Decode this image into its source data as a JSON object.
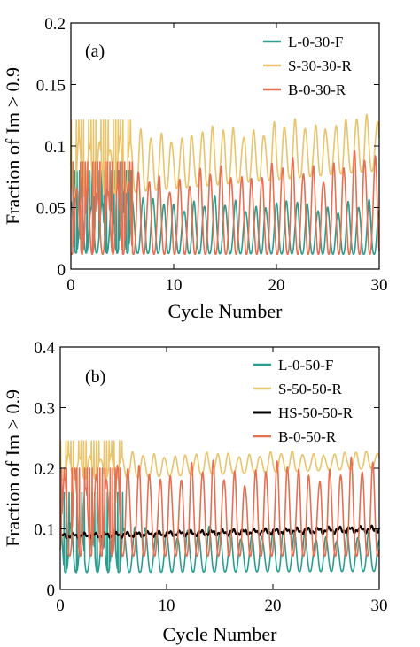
{
  "chart_data": [
    {
      "type": "line",
      "panel_label": "(a)",
      "xlabel": "Cycle Number",
      "ylabel": "Fraction of Im > 0.9",
      "xlim": [
        0,
        30
      ],
      "ylim": [
        0,
        0.2
      ],
      "xticks": [
        0,
        10,
        20,
        30
      ],
      "yticks": [
        0,
        0.05,
        0.1,
        0.15,
        0.2
      ],
      "xtick_labels": [
        "0",
        "10",
        "20",
        "30"
      ],
      "ytick_labels": [
        "0",
        "0.05",
        "0.1",
        "0.15",
        "0.2"
      ],
      "grid": false,
      "legend_position": "top-right",
      "series": [
        {
          "name": "L-0-30-F",
          "color": "#2a9d8f",
          "style": "oscillating",
          "cycles": 30,
          "low_start": 0.013,
          "low_end": 0.012,
          "high_start": 0.055,
          "high_end": 0.05,
          "peak_value": 0.08
        },
        {
          "name": "S-30-30-R",
          "color": "#e9c46a",
          "style": "oscillating",
          "cycles": 30,
          "low_start": 0.058,
          "low_end": 0.08,
          "high_start": 0.102,
          "high_end": 0.121,
          "peak_value": 0.121
        },
        {
          "name": "B-0-30-R",
          "color": "#e76f51",
          "style": "oscillating",
          "cycles": 30,
          "low_start": 0.012,
          "low_end": 0.012,
          "high_start": 0.065,
          "high_end": 0.087,
          "peak_value": 0.087
        }
      ]
    },
    {
      "type": "line",
      "panel_label": "(b)",
      "xlabel": "Cycle Number",
      "ylabel": "Fraction of Im > 0.9",
      "xlim": [
        0,
        30
      ],
      "ylim": [
        0,
        0.4
      ],
      "xticks": [
        0,
        10,
        20,
        30
      ],
      "yticks": [
        0,
        0.1,
        0.2,
        0.3,
        0.4
      ],
      "xtick_labels": [
        "0",
        "10",
        "20",
        "30"
      ],
      "ytick_labels": [
        "0",
        "0.1",
        "0.2",
        "0.3",
        "0.4"
      ],
      "grid": false,
      "legend_position": "top-right",
      "series": [
        {
          "name": "L-0-50-F",
          "color": "#2a9d8f",
          "style": "oscillating",
          "cycles": 30,
          "low_start": 0.028,
          "low_end": 0.03,
          "high_start": 0.1,
          "high_end": 0.085,
          "peak_value": 0.16
        },
        {
          "name": "S-50-50-R",
          "color": "#e9c46a",
          "style": "oscillating",
          "cycles": 30,
          "low_start": 0.18,
          "low_end": 0.2,
          "high_start": 0.22,
          "high_end": 0.225,
          "peak_value": 0.245
        },
        {
          "name": "HS-50-50-R",
          "color": "#000000",
          "style": "noisy",
          "cycles": 30,
          "low_start": 0.083,
          "low_end": 0.093,
          "high_start": 0.093,
          "high_end": 0.106,
          "peak_value": 0.11
        },
        {
          "name": "B-0-50-R",
          "color": "#e76f51",
          "style": "oscillating",
          "cycles": 30,
          "low_start": 0.055,
          "low_end": 0.055,
          "high_start": 0.19,
          "high_end": 0.195,
          "peak_value": 0.2
        }
      ]
    }
  ]
}
